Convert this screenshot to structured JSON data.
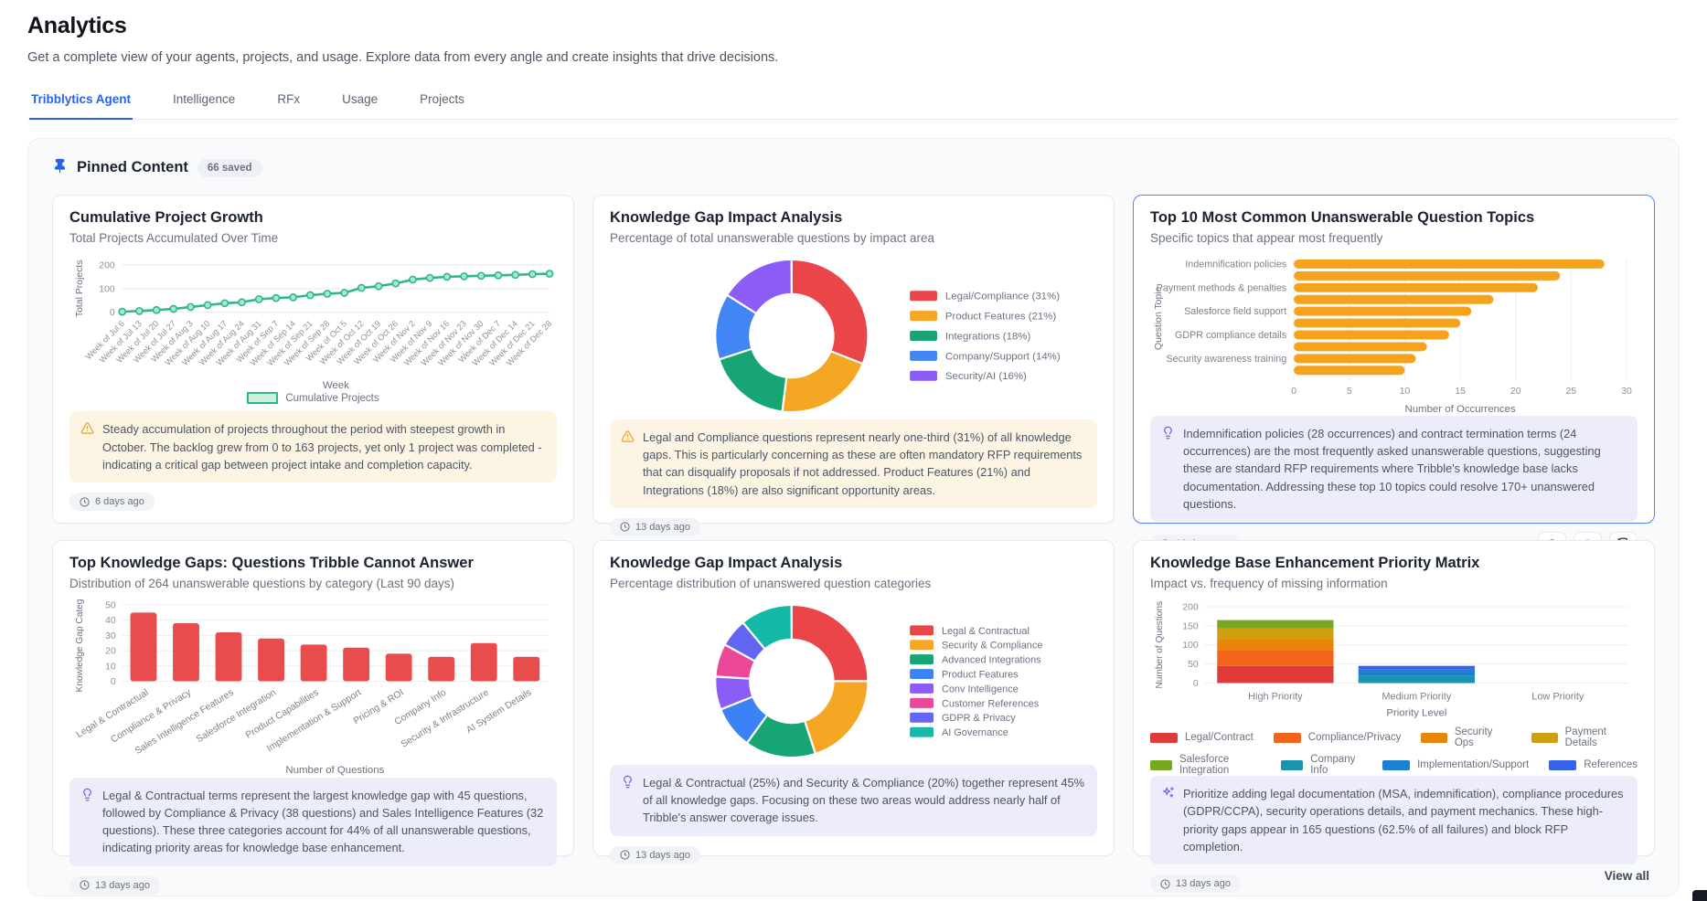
{
  "page": {
    "title": "Analytics",
    "subtitle": "Get a complete view of your agents, projects, and usage. Explore data from every angle and create insights that drive decisions.",
    "tabs": [
      {
        "label": "Tribblytics Agent",
        "active": true
      },
      {
        "label": "Intelligence",
        "active": false
      },
      {
        "label": "RFx",
        "active": false
      },
      {
        "label": "Usage",
        "active": false
      },
      {
        "label": "Projects",
        "active": false
      }
    ]
  },
  "pinned": {
    "title": "Pinned Content",
    "badge": "66 saved",
    "view_all": "View all"
  },
  "colors": {
    "accent_blue": "#2563eb",
    "line_green": "#2eb88a",
    "bar_orange": "#f5a31d",
    "bar_red": "#e84c4c",
    "warning_amber": "#f0a020",
    "insight_purple": "#7c5cf0"
  },
  "cards": [
    {
      "title": "Cumulative Project Growth",
      "subtitle": "Total Projects Accumulated Over Time",
      "timestamp": "6 days ago",
      "insight": {
        "type": "warning",
        "text": "Steady accumulation of projects throughout the period with steepest growth in October. The backlog grew from 0 to 163 projects, yet only 1 project was completed - indicating a critical gap between project intake and completion capacity."
      },
      "chart": {
        "type": "line",
        "color": "#2eb88a",
        "fill": "#cdeedd",
        "ylabel": "Total Projects",
        "xlabel": "Week",
        "legend": "Cumulative Projects",
        "ymax": 200,
        "yticks": [
          0,
          100,
          200
        ],
        "x": [
          "Week of Jul 6",
          "Week of Jul 13",
          "Week of Jul 20",
          "Week of Jul 27",
          "Week of Aug 3",
          "Week of Aug 10",
          "Week of Aug 17",
          "Week of Aug 24",
          "Week of Aug 31",
          "Week of Sep 7",
          "Week of Sep 14",
          "Week of Sep 21",
          "Week of Sep 28",
          "Week of Oct 5",
          "Week of Oct 12",
          "Week of Oct 19",
          "Week of Oct 26",
          "Week of Nov 2",
          "Week of Nov 9",
          "Week of Nov 16",
          "Week of Nov 23",
          "Week of Nov 30",
          "Week of Dec 7",
          "Week of Dec 14",
          "Week of Dec 21",
          "Week of Dec 28"
        ],
        "values": [
          2,
          5,
          9,
          14,
          22,
          30,
          38,
          42,
          55,
          60,
          63,
          72,
          78,
          82,
          103,
          110,
          122,
          138,
          145,
          150,
          152,
          154,
          156,
          158,
          161,
          163
        ]
      }
    },
    {
      "title": "Knowledge Gap Impact Analysis",
      "subtitle": "Percentage of total unanswerable questions by impact area",
      "timestamp": "13 days ago",
      "insight": {
        "type": "warning",
        "text": "Legal and Compliance questions represent nearly one-third (31%) of all knowledge gaps. This is particularly concerning as these are often mandatory RFP requirements that can disqualify proposals if not addressed. Product Features (21%) and Integrations (18%) are also significant opportunity areas."
      },
      "chart": {
        "type": "donut",
        "segments": [
          {
            "label": "Legal/Compliance (31%)",
            "value": 31,
            "color": "#ea4549"
          },
          {
            "label": "Product Features (21%)",
            "value": 21,
            "color": "#f5a623"
          },
          {
            "label": "Integrations (18%)",
            "value": 18,
            "color": "#17a673"
          },
          {
            "label": "Company/Support (14%)",
            "value": 14,
            "color": "#4285f4"
          },
          {
            "label": "Security/AI (16%)",
            "value": 16,
            "color": "#8b5cf6"
          }
        ]
      }
    },
    {
      "title": "Top 10 Most Common Unanswerable Question Topics",
      "subtitle": "Specific topics that appear most frequently",
      "timestamp": "13 days ago",
      "selected": true,
      "insight": {
        "type": "bulb",
        "text": "Indemnification policies (28 occurrences) and contract termination terms (24 occurrences) are the most frequently asked unanswerable questions, suggesting these are standard RFP requirements where Tribble's knowledge base lacks documentation. Addressing these top 10 topics could resolve 170+ unanswered questions."
      },
      "chart": {
        "type": "hbar",
        "color": "#f5a31d",
        "ylabel": "Question Topic",
        "xlabel": "Number of Occurrences",
        "xmax": 30,
        "xticks": [
          0,
          5,
          10,
          15,
          20,
          25,
          30
        ],
        "bars": [
          {
            "label": "Indemnification policies",
            "value": 28
          },
          {
            "label": "",
            "value": 24
          },
          {
            "label": "Payment methods & penalties",
            "value": 22
          },
          {
            "label": "",
            "value": 18
          },
          {
            "label": "Salesforce field support",
            "value": 16
          },
          {
            "label": "",
            "value": 15
          },
          {
            "label": "GDPR compliance details",
            "value": 14
          },
          {
            "label": "",
            "value": 12
          },
          {
            "label": "Security awareness training",
            "value": 11
          },
          {
            "label": "",
            "value": 10
          }
        ]
      }
    },
    {
      "title": "Top Knowledge Gaps: Questions Tribble Cannot Answer",
      "subtitle": "Distribution of 264 unanswerable questions by category (Last 90 days)",
      "timestamp": "13 days ago",
      "insight": {
        "type": "bulb",
        "text": "Legal & Contractual terms represent the largest knowledge gap with 45 questions, followed by Compliance & Privacy (38 questions) and Sales Intelligence Features (32 questions). These three categories account for 44% of all unanswerable questions, indicating priority areas for knowledge base enhancement."
      },
      "chart": {
        "type": "vbar",
        "color": "#e84c4c",
        "ylabel": "Knowledge Gap Catego",
        "xlabel": "Number of Questions",
        "ymax": 50,
        "yticks": [
          0,
          10,
          20,
          30,
          40,
          50
        ],
        "categories": [
          "Legal & Contractual",
          "Compliance & Privacy",
          "Sales Intelligence Features",
          "Salesforce Integration",
          "Product Capabilities",
          "Implementation & Support",
          "Pricing & ROI",
          "Company Info",
          "Security & Infrastructure",
          "AI System Details"
        ],
        "values": [
          45,
          38,
          32,
          28,
          24,
          22,
          18,
          16,
          25,
          16
        ]
      }
    },
    {
      "title": "Knowledge Gap Impact Analysis",
      "subtitle": "Percentage distribution of unanswered question categories",
      "timestamp": "13 days ago",
      "insight": {
        "type": "bulb",
        "text": "Legal & Contractual (25%) and Security & Compliance (20%) together represent 45% of all knowledge gaps. Focusing on these two areas would address nearly half of Tribble's answer coverage issues."
      },
      "chart": {
        "type": "donut",
        "segments": [
          {
            "label": "Legal & Contractual",
            "value": 25,
            "color": "#ea4549"
          },
          {
            "label": "Security & Compliance",
            "value": 20,
            "color": "#f5a623"
          },
          {
            "label": "Advanced Integrations",
            "value": 15,
            "color": "#17a673"
          },
          {
            "label": "Product Features",
            "value": 9,
            "color": "#3b82f6"
          },
          {
            "label": "Conv Intelligence",
            "value": 7,
            "color": "#8b5cf6"
          },
          {
            "label": "Customer References",
            "value": 7,
            "color": "#ec4899"
          },
          {
            "label": "GDPR & Privacy",
            "value": 6,
            "color": "#6366f1"
          },
          {
            "label": "AI Governance",
            "value": 11,
            "color": "#14b8a6"
          }
        ]
      }
    },
    {
      "title": "Knowledge Base Enhancement Priority Matrix",
      "subtitle": "Impact vs. frequency of missing information",
      "timestamp": "13 days ago",
      "insight": {
        "type": "sparkle",
        "text": "Prioritize adding legal documentation (MSA, indemnification), compliance procedures (GDPR/CCPA), security operations details, and payment mechanics. These high-priority gaps appear in 165 questions (62.5% of all failures) and block RFP completion."
      },
      "chart": {
        "type": "stacked",
        "ylabel": "Number of Questions",
        "xlabel": "Priority Level",
        "ymax": 200,
        "yticks": [
          0,
          50,
          100,
          150,
          200
        ],
        "categories": [
          "High Priority",
          "Medium Priority",
          "Low Priority"
        ],
        "series": [
          {
            "name": "Legal/Contract",
            "color": "#e03a3a",
            "values": [
              45,
              0,
              0
            ]
          },
          {
            "name": "Compliance/Privacy",
            "color": "#f26419",
            "values": [
              40,
              0,
              0
            ]
          },
          {
            "name": "Security Ops",
            "color": "#e8860c",
            "values": [
              30,
              0,
              0
            ]
          },
          {
            "name": "Payment Details",
            "color": "#cf9f0f",
            "values": [
              28,
              0,
              0
            ]
          },
          {
            "name": "Salesforce Integration",
            "color": "#76a821",
            "values": [
              22,
              0,
              0
            ]
          },
          {
            "name": "Company Info",
            "color": "#1b93ae",
            "values": [
              0,
              20,
              0
            ]
          },
          {
            "name": "Implementation/Support",
            "color": "#1d7fd0",
            "values": [
              0,
              15,
              0
            ]
          },
          {
            "name": "References",
            "color": "#3563e9",
            "values": [
              0,
              10,
              0
            ]
          }
        ]
      }
    }
  ]
}
